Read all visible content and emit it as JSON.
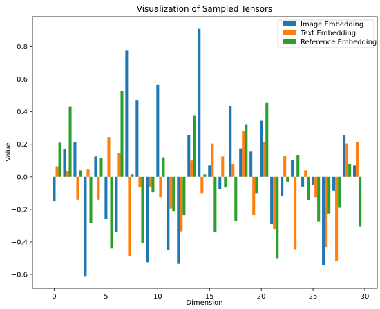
{
  "chart_data": {
    "type": "bar",
    "title": "Visualization of Sampled Tensors",
    "xlabel": "Dimension",
    "ylabel": "Value",
    "xlim": [
      -2.1,
      31.2
    ],
    "ylim": [
      -0.685,
      0.985
    ],
    "xticks": [
      0,
      5,
      10,
      15,
      20,
      25,
      30
    ],
    "xtick_labels": [
      "0",
      "5",
      "10",
      "15",
      "20",
      "25",
      "30"
    ],
    "yticks": [
      -0.6,
      -0.4,
      -0.2,
      0.0,
      0.2,
      0.4,
      0.6,
      0.8
    ],
    "ytick_labels": [
      "−0.6",
      "−0.4",
      "−0.2",
      "0.0",
      "0.2",
      "0.4",
      "0.6",
      "0.8"
    ],
    "grid": false,
    "legend_position": "top-right",
    "bar_width": 0.27,
    "x": [
      0,
      1,
      2,
      3,
      4,
      5,
      6,
      7,
      8,
      9,
      10,
      11,
      12,
      13,
      14,
      15,
      16,
      17,
      18,
      19,
      20,
      21,
      22,
      23,
      24,
      25,
      26,
      27,
      28,
      29
    ],
    "series": [
      {
        "name": "Image Embedding",
        "color": "#1f77b4",
        "values": [
          -0.15,
          0.17,
          0.215,
          -0.61,
          0.125,
          -0.26,
          -0.34,
          0.775,
          0.47,
          -0.525,
          0.565,
          -0.45,
          -0.535,
          0.255,
          0.91,
          0.07,
          -0.075,
          0.435,
          0.175,
          0.155,
          0.345,
          -0.29,
          -0.12,
          0.105,
          -0.06,
          -0.05,
          -0.545,
          -0.085,
          0.255,
          0.07
        ]
      },
      {
        "name": "Text Embedding",
        "color": "#ff7f0e",
        "values": [
          0.065,
          0.035,
          -0.14,
          0.045,
          -0.14,
          0.245,
          0.145,
          -0.49,
          -0.065,
          -0.06,
          -0.125,
          -0.195,
          -0.335,
          0.1,
          -0.1,
          0.205,
          0.125,
          0.08,
          0.28,
          -0.235,
          0.215,
          -0.32,
          0.13,
          -0.445,
          0.04,
          -0.125,
          -0.435,
          -0.515,
          0.205,
          0.215
        ]
      },
      {
        "name": "Reference Embedding",
        "color": "#2ca02c",
        "values": [
          0.21,
          0.43,
          0.04,
          -0.285,
          0.115,
          -0.44,
          0.53,
          0.015,
          -0.405,
          -0.095,
          0.12,
          -0.21,
          -0.235,
          0.375,
          0.015,
          -0.34,
          -0.065,
          -0.27,
          0.32,
          -0.1,
          0.455,
          -0.5,
          -0.03,
          0.135,
          -0.145,
          -0.275,
          -0.225,
          -0.19,
          0.08,
          -0.305
        ]
      }
    ]
  }
}
